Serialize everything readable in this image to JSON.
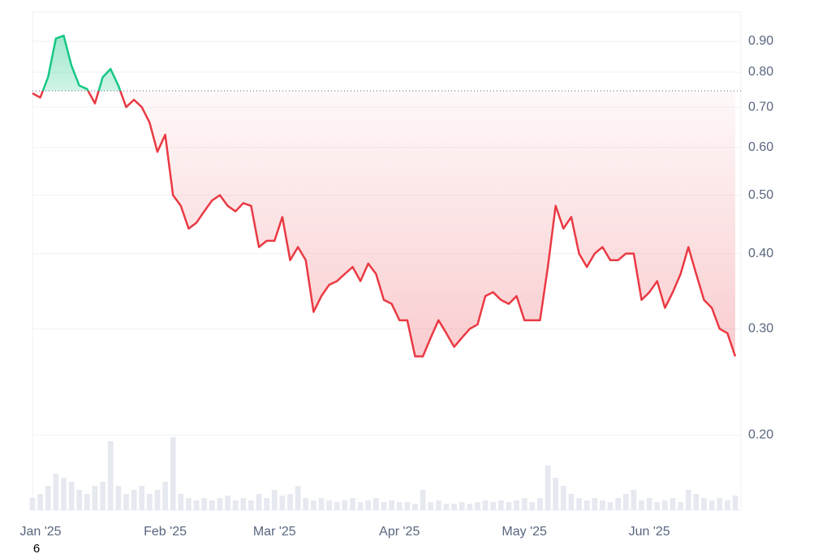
{
  "chart_data": {
    "type": "line",
    "log_scale": true,
    "grid": true,
    "categories": [
      "Jan '25",
      null,
      null,
      null,
      null,
      null,
      null,
      null,
      null,
      null,
      null,
      null,
      null,
      null,
      null,
      null,
      null,
      "Feb '25",
      null,
      null,
      null,
      null,
      null,
      null,
      null,
      null,
      null,
      null,
      null,
      null,
      null,
      "Mar '25",
      null,
      null,
      null,
      null,
      null,
      null,
      null,
      null,
      null,
      null,
      null,
      null,
      null,
      null,
      null,
      "Apr '25",
      null,
      null,
      null,
      null,
      null,
      null,
      null,
      null,
      null,
      null,
      null,
      null,
      null,
      null,
      null,
      "May '25",
      null,
      null,
      null,
      null,
      null,
      null,
      null,
      null,
      null,
      null,
      null,
      null,
      null,
      null,
      null,
      "Jun '25",
      null,
      null,
      null,
      null,
      null,
      null,
      null,
      null,
      null,
      null,
      null
    ],
    "values": [
      0.738,
      0.726,
      0.785,
      0.91,
      0.92,
      0.82,
      0.76,
      0.75,
      0.71,
      0.785,
      0.81,
      0.76,
      0.7,
      0.72,
      0.7,
      0.66,
      0.59,
      0.63,
      0.5,
      0.48,
      0.44,
      0.45,
      0.47,
      0.49,
      0.5,
      0.48,
      0.47,
      0.485,
      0.48,
      0.41,
      0.42,
      0.42,
      0.46,
      0.39,
      0.41,
      0.39,
      0.32,
      0.34,
      0.355,
      0.36,
      0.37,
      0.38,
      0.36,
      0.385,
      0.37,
      0.335,
      0.33,
      0.31,
      0.31,
      0.27,
      0.27,
      0.29,
      0.31,
      0.295,
      0.28,
      0.29,
      0.3,
      0.305,
      0.34,
      0.345,
      0.335,
      0.33,
      0.34,
      0.31,
      0.31,
      0.31,
      0.38,
      0.48,
      0.44,
      0.46,
      0.4,
      0.38,
      0.4,
      0.41,
      0.39,
      0.39,
      0.4,
      0.4,
      0.335,
      0.345,
      0.36,
      0.325,
      0.345,
      0.37,
      0.41,
      0.37,
      0.335,
      0.325,
      0.3,
      0.295,
      0.27
    ],
    "volumes": [
      15,
      20,
      30,
      45,
      40,
      35,
      25,
      20,
      30,
      35,
      85,
      30,
      20,
      25,
      30,
      20,
      25,
      35,
      90,
      20,
      15,
      12,
      15,
      12,
      15,
      18,
      12,
      15,
      12,
      20,
      15,
      25,
      18,
      20,
      30,
      15,
      12,
      15,
      12,
      10,
      12,
      15,
      10,
      12,
      15,
      10,
      12,
      10,
      10,
      8,
      25,
      10,
      12,
      8,
      8,
      10,
      8,
      10,
      12,
      10,
      12,
      10,
      12,
      15,
      10,
      15,
      55,
      40,
      30,
      20,
      15,
      12,
      15,
      12,
      10,
      15,
      20,
      25,
      12,
      15,
      10,
      12,
      15,
      10,
      25,
      20,
      15,
      12,
      15,
      12,
      18
    ],
    "baseline": 0.745,
    "up_color": "#16c784",
    "down_color": "#ea3943",
    "volume_color": "#e6e9ef",
    "ylim": [
      0.15,
      1.0
    ],
    "yticks": [
      {
        "value": 0.9,
        "label": "0.90"
      },
      {
        "value": 0.8,
        "label": "0.80"
      },
      {
        "value": 0.7,
        "label": "0.70"
      },
      {
        "value": 0.6,
        "label": "0.60"
      },
      {
        "value": 0.5,
        "label": "0.50"
      },
      {
        "value": 0.4,
        "label": "0.40"
      },
      {
        "value": 0.3,
        "label": "0.30"
      },
      {
        "value": 0.2,
        "label": "0.20"
      }
    ],
    "footnote": "6"
  }
}
